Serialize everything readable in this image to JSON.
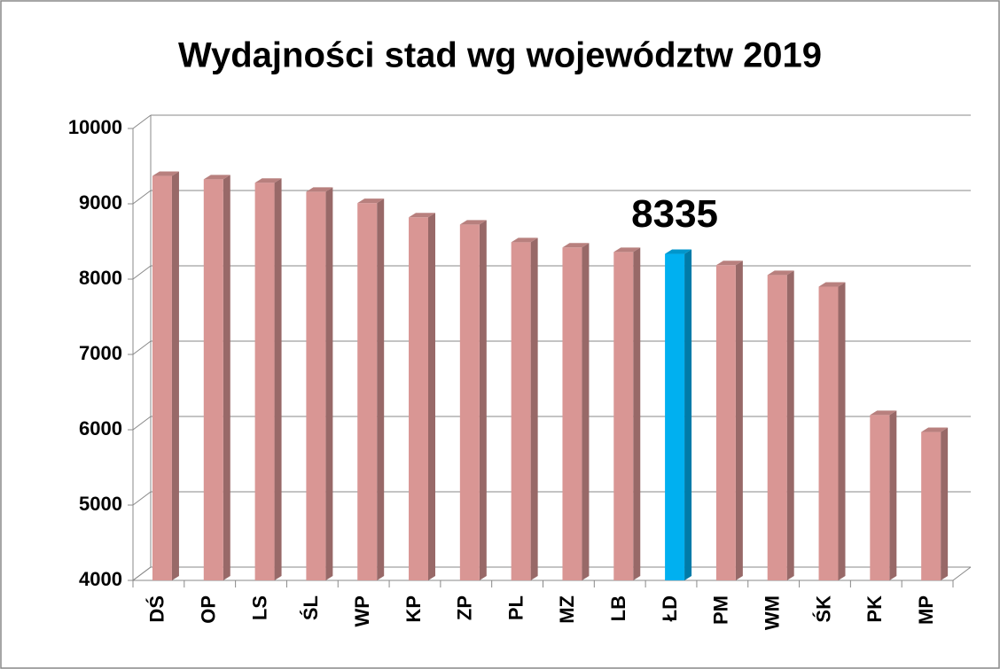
{
  "chart_data": {
    "type": "bar3d",
    "title": "Wydajności stad wg województw 2019",
    "categories": [
      "DŚ",
      "OP",
      "LS",
      "ŚL",
      "WP",
      "KP",
      "ZP",
      "PL",
      "MZ",
      "LB",
      "ŁD",
      "PM",
      "WM",
      "ŚK",
      "PK",
      "MP"
    ],
    "values": [
      9370,
      9325,
      9280,
      9160,
      9010,
      8820,
      8725,
      8490,
      8420,
      8360,
      8335,
      8185,
      8055,
      7900,
      6195,
      5970
    ],
    "colors": [
      "#d99694",
      "#d99694",
      "#d99694",
      "#d99694",
      "#d99694",
      "#d99694",
      "#d99694",
      "#d99694",
      "#d99694",
      "#d99694",
      "#00b0f0",
      "#d99694",
      "#d99694",
      "#d99694",
      "#d99694",
      "#d99694"
    ],
    "show_value_label": [
      false,
      false,
      false,
      false,
      false,
      false,
      false,
      false,
      false,
      false,
      true,
      false,
      false,
      false,
      false,
      false
    ],
    "ylim": [
      4000,
      10000
    ],
    "yticks": [
      4000,
      5000,
      6000,
      7000,
      8000,
      9000,
      10000
    ],
    "grid": true
  }
}
